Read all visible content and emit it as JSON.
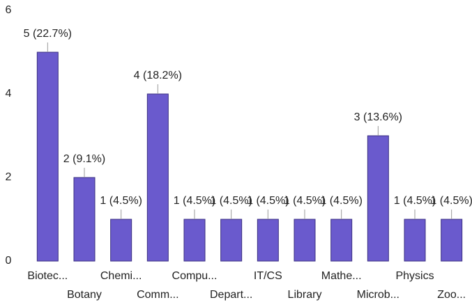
{
  "chart_data": {
    "type": "bar",
    "categories": [
      "Biotec...",
      "Botany",
      "Chemi...",
      "Comm...",
      "Compu...",
      "Depart...",
      "IT/CS",
      "Library",
      "Mathe...",
      "Microb...",
      "Physics",
      "Zoo..."
    ],
    "values": [
      5,
      2,
      1,
      4,
      1,
      1,
      1,
      1,
      1,
      3,
      1,
      1
    ],
    "value_labels": [
      "5 (22.7%)",
      "2 (9.1%)",
      "1 (4.5%)",
      "4 (18.2%)",
      "1 (4.5%)",
      "1 (4.5%)",
      "1 (4.5%)",
      "1 (4.5%)",
      "1 (4.5%)",
      "3 (13.6%)",
      "1 (4.5%)",
      "1 (4.5%)"
    ],
    "color": "#6a5acd",
    "ylim": [
      0,
      6
    ],
    "yticks": [
      0,
      2,
      4,
      6
    ],
    "grid": false
  }
}
